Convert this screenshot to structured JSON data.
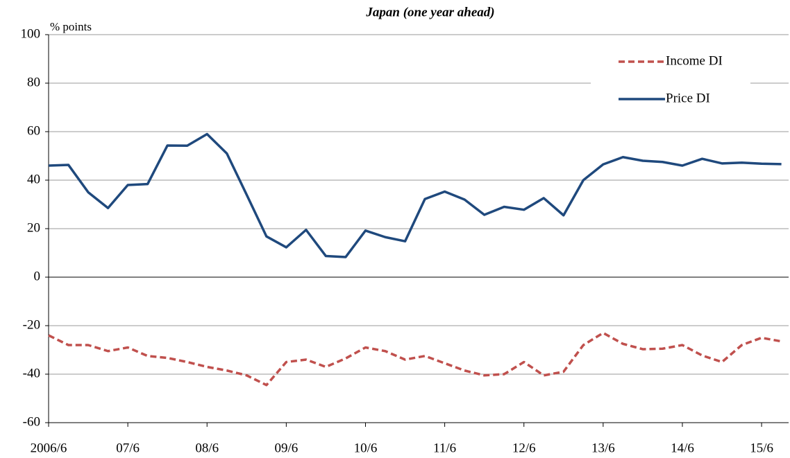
{
  "chart_data": {
    "type": "line",
    "title": "Japan (one year ahead)",
    "y_label": "% points",
    "categories": [
      "2006/6",
      null,
      null,
      null,
      "07/6",
      null,
      null,
      null,
      "08/6",
      null,
      null,
      null,
      "09/6",
      null,
      null,
      null,
      "10/6",
      null,
      null,
      null,
      "11/6",
      null,
      null,
      null,
      "12/6",
      null,
      null,
      null,
      "13/6",
      null,
      null,
      null,
      "14/6",
      null,
      null,
      null,
      "15/6",
      null
    ],
    "series": [
      {
        "name": "Income DI",
        "color": "#c0504d",
        "line_style": "dashed",
        "values": [
          -24,
          -28,
          -28,
          -30.5,
          -29,
          -32.5,
          -33.3,
          -35,
          -37,
          -38.5,
          -40.5,
          -44.5,
          -35,
          -34,
          -37,
          -33.5,
          -29,
          -30.5,
          -34,
          -32.5,
          -35.5,
          -38.5,
          -40.5,
          -40,
          -35,
          -40.5,
          -39,
          -28,
          -23,
          -27.5,
          -29.7,
          -29.5,
          -28,
          -32.3,
          -35,
          -28,
          -25,
          -26.5
        ]
      },
      {
        "name": "Price DI",
        "color": "#1f497d",
        "line_style": "solid",
        "values": [
          46,
          46.3,
          35,
          28.5,
          38,
          38.4,
          54.3,
          54.2,
          59,
          51,
          34,
          16.8,
          12.3,
          19.5,
          8.7,
          8.3,
          19.2,
          16.5,
          14.8,
          32.2,
          35.3,
          32,
          25.7,
          29,
          27.8,
          32.6,
          25.5,
          40,
          46.5,
          49.5,
          48,
          47.5,
          46,
          48.8,
          46.9,
          47.2,
          46.8,
          46.6
        ]
      }
    ],
    "ylim": [
      -60,
      100
    ],
    "yticks": [
      -60,
      -40,
      -20,
      0,
      20,
      40,
      60,
      80,
      100
    ],
    "grid": true,
    "legend": "upper right"
  }
}
